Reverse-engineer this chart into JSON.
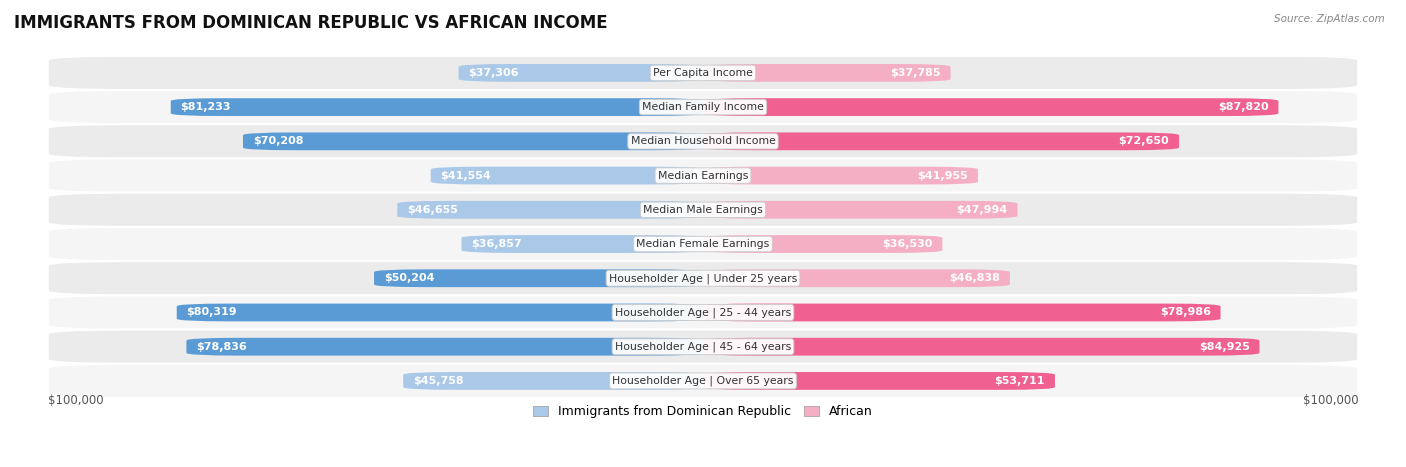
{
  "title": "IMMIGRANTS FROM DOMINICAN REPUBLIC VS AFRICAN INCOME",
  "source": "Source: ZipAtlas.com",
  "categories": [
    "Per Capita Income",
    "Median Family Income",
    "Median Household Income",
    "Median Earnings",
    "Median Male Earnings",
    "Median Female Earnings",
    "Householder Age | Under 25 years",
    "Householder Age | 25 - 44 years",
    "Householder Age | 45 - 64 years",
    "Householder Age | Over 65 years"
  ],
  "dominican": [
    37306,
    81233,
    70208,
    41554,
    46655,
    36857,
    50204,
    80319,
    78836,
    45758
  ],
  "african": [
    37785,
    87820,
    72650,
    41955,
    47994,
    36530,
    46838,
    78986,
    84925,
    53711
  ],
  "dominican_labels": [
    "$37,306",
    "$81,233",
    "$70,208",
    "$41,554",
    "$46,655",
    "$36,857",
    "$50,204",
    "$80,319",
    "$78,836",
    "$45,758"
  ],
  "african_labels": [
    "$37,785",
    "$87,820",
    "$72,650",
    "$41,955",
    "$47,994",
    "$36,530",
    "$46,838",
    "$78,986",
    "$84,925",
    "$53,711"
  ],
  "max_val": 100000,
  "color_dominican_light": "#aac8e8",
  "color_dominican_dark": "#5b9bd5",
  "color_african_light": "#f4afc4",
  "color_african_dark": "#f06090",
  "inside_threshold_dom": 0.3,
  "inside_threshold_afr": 0.3,
  "label_fontsize": 8.0,
  "cat_fontsize": 7.8,
  "title_fontsize": 12,
  "legend_fontsize": 9,
  "row_bg": "#ebebeb",
  "row_bg2": "#f5f5f5"
}
